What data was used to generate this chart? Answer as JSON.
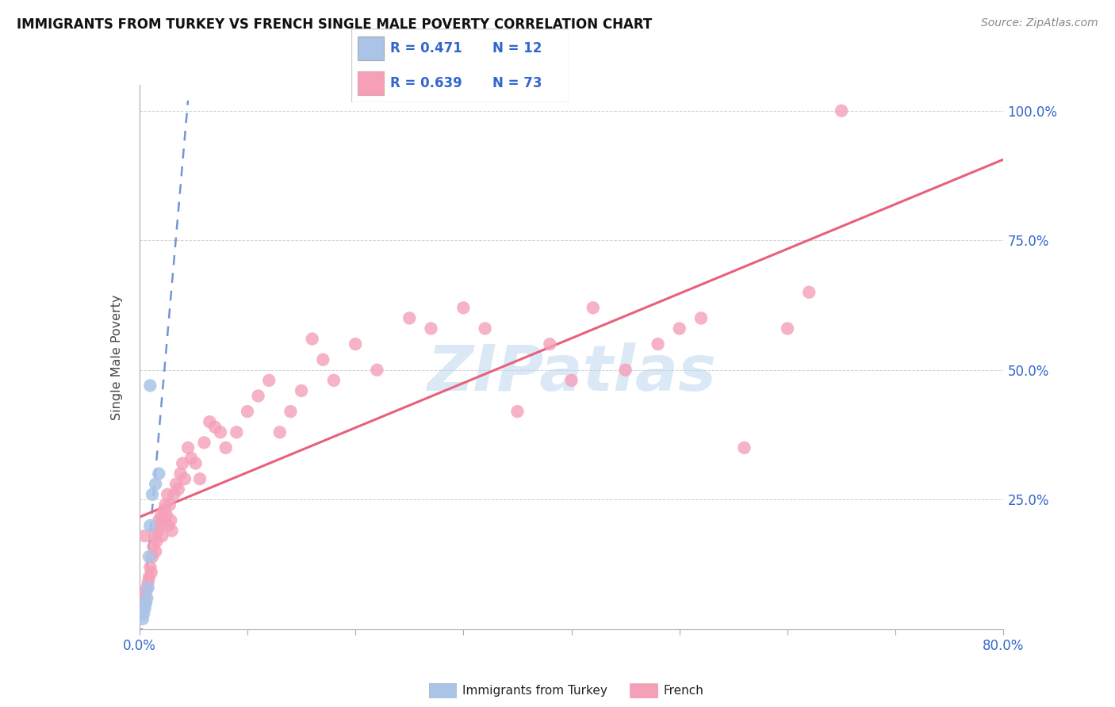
{
  "title": "IMMIGRANTS FROM TURKEY VS FRENCH SINGLE MALE POVERTY CORRELATION CHART",
  "source": "Source: ZipAtlas.com",
  "ylabel": "Single Male Poverty",
  "ytick_vals": [
    0,
    0.25,
    0.5,
    0.75,
    1.0
  ],
  "ytick_labels": [
    "",
    "25.0%",
    "50.0%",
    "75.0%",
    "100.0%"
  ],
  "xlim": [
    0,
    0.8
  ],
  "ylim": [
    0,
    1.05
  ],
  "turkey_color": "#aac4e8",
  "french_color": "#f5a0b8",
  "turkey_line_color": "#4472c4",
  "french_line_color": "#e8607a",
  "watermark": "ZIPatlas",
  "background_color": "#ffffff",
  "grid_color": "#cccccc",
  "turkey_scatter_x": [
    0.003,
    0.004,
    0.005,
    0.006,
    0.007,
    0.008,
    0.009,
    0.01,
    0.012,
    0.015,
    0.018,
    0.01
  ],
  "turkey_scatter_y": [
    0.02,
    0.03,
    0.04,
    0.05,
    0.06,
    0.08,
    0.14,
    0.2,
    0.26,
    0.28,
    0.3,
    0.47
  ],
  "french_scatter_x": [
    0.002,
    0.003,
    0.004,
    0.005,
    0.006,
    0.007,
    0.008,
    0.009,
    0.01,
    0.011,
    0.012,
    0.013,
    0.014,
    0.015,
    0.016,
    0.017,
    0.018,
    0.019,
    0.02,
    0.021,
    0.022,
    0.023,
    0.024,
    0.025,
    0.026,
    0.027,
    0.028,
    0.029,
    0.03,
    0.032,
    0.034,
    0.036,
    0.038,
    0.04,
    0.042,
    0.045,
    0.048,
    0.052,
    0.056,
    0.06,
    0.065,
    0.07,
    0.075,
    0.08,
    0.09,
    0.1,
    0.11,
    0.12,
    0.13,
    0.14,
    0.15,
    0.16,
    0.17,
    0.18,
    0.2,
    0.22,
    0.25,
    0.27,
    0.3,
    0.32,
    0.35,
    0.38,
    0.4,
    0.42,
    0.45,
    0.48,
    0.5,
    0.52,
    0.56,
    0.6,
    0.62,
    0.65,
    0.005
  ],
  "french_scatter_y": [
    0.03,
    0.04,
    0.05,
    0.06,
    0.07,
    0.08,
    0.09,
    0.1,
    0.12,
    0.11,
    0.14,
    0.16,
    0.18,
    0.15,
    0.17,
    0.19,
    0.21,
    0.2,
    0.22,
    0.18,
    0.21,
    0.23,
    0.24,
    0.22,
    0.26,
    0.2,
    0.24,
    0.21,
    0.19,
    0.26,
    0.28,
    0.27,
    0.3,
    0.32,
    0.29,
    0.35,
    0.33,
    0.32,
    0.29,
    0.36,
    0.4,
    0.39,
    0.38,
    0.35,
    0.38,
    0.42,
    0.45,
    0.48,
    0.38,
    0.42,
    0.46,
    0.56,
    0.52,
    0.48,
    0.55,
    0.5,
    0.6,
    0.58,
    0.62,
    0.58,
    0.42,
    0.55,
    0.48,
    0.62,
    0.5,
    0.55,
    0.58,
    0.6,
    0.35,
    0.58,
    0.65,
    1.0,
    0.18
  ],
  "legend_r_turkey": "R = 0.471",
  "legend_n_turkey": "N = 12",
  "legend_r_french": "R = 0.639",
  "legend_n_french": "N = 73"
}
